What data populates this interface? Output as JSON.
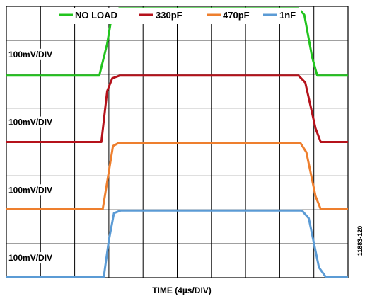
{
  "chart_data": {
    "type": "line",
    "grid": true,
    "legend_position": "top",
    "xlabel": "TIME (4µs/DIV)",
    "figure_id": "11883-120",
    "x_divisions": 10,
    "y_divisions": 8,
    "x_range_div": [
      0,
      10
    ],
    "y_range_div": [
      0,
      8
    ],
    "channel_labels": [
      "100mV/DIV",
      "100mV/DIV",
      "100mV/DIV",
      "100mV/DIV"
    ],
    "series": [
      {
        "name": "NO LOAD",
        "color": "#22c41e",
        "baseline_div": 5.96,
        "step_div": 1.98,
        "x_div": [
          0,
          2.72,
          2.95,
          3.1,
          3.3,
          8.55,
          8.72,
          8.95,
          9.1,
          10
        ],
        "y_div": [
          5.96,
          5.96,
          6.9,
          7.8,
          7.94,
          7.94,
          7.75,
          6.5,
          5.96,
          5.96
        ]
      },
      {
        "name": "330pF",
        "color": "#b5121b",
        "baseline_div": 4.0,
        "step_div": 1.96,
        "x_div": [
          0,
          2.78,
          2.95,
          3.1,
          3.32,
          8.55,
          8.75,
          9.05,
          9.2,
          10
        ],
        "y_div": [
          4.0,
          4.0,
          5.5,
          5.88,
          5.96,
          5.96,
          5.75,
          4.4,
          4.0,
          4.0
        ]
      },
      {
        "name": "470pF",
        "color": "#ee7f2e",
        "baseline_div": 2.02,
        "step_div": 1.96,
        "x_div": [
          0,
          2.82,
          2.98,
          3.12,
          3.3,
          8.6,
          8.78,
          9.05,
          9.2,
          10
        ],
        "y_div": [
          2.02,
          2.02,
          3.0,
          3.88,
          3.98,
          3.98,
          3.7,
          2.4,
          2.02,
          2.02
        ]
      },
      {
        "name": "1nF",
        "color": "#5b9bd5",
        "baseline_div": 0.02,
        "step_div": 1.96,
        "x_div": [
          0,
          2.85,
          3.0,
          3.15,
          3.35,
          8.65,
          8.85,
          9.15,
          9.35,
          10
        ],
        "y_div": [
          0.02,
          0.02,
          1.1,
          1.9,
          1.98,
          1.98,
          1.75,
          0.3,
          0.02,
          0.02
        ]
      }
    ]
  }
}
